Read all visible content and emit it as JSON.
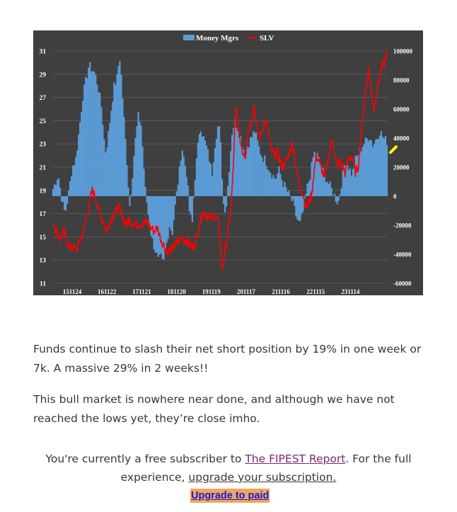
{
  "chart_data": {
    "type": "line+bar",
    "title": "",
    "legend": {
      "placement": "top-center",
      "entries": [
        {
          "name": "Money Mgrs",
          "kind": "bar",
          "color": "#5b9bd5"
        },
        {
          "name": "SLV",
          "kind": "line",
          "color": "#ff0000"
        }
      ]
    },
    "x_tick_labels": [
      "151124",
      "161122",
      "171121",
      "181120",
      "191119",
      "201117",
      "211116",
      "221115",
      "231114"
    ],
    "x_range": [
      2015.35,
      2024.95
    ],
    "left_axis": {
      "label": "",
      "range": [
        11,
        31
      ],
      "ticks": [
        31,
        29,
        27,
        25,
        23,
        21,
        19,
        17,
        15,
        13,
        11
      ],
      "series": "SLV"
    },
    "right_axis": {
      "label": "",
      "range": [
        -60000,
        100000
      ],
      "ticks": [
        100000,
        80000,
        60000,
        40000,
        20000,
        0,
        -20000,
        -40000,
        -60000
      ],
      "series": "Money Mgrs"
    },
    "series": [
      {
        "name": "Money Mgrs",
        "type": "bar",
        "axis": "right",
        "points": [
          [
            2015.35,
            5000
          ],
          [
            2015.5,
            15000
          ],
          [
            2015.62,
            -5000
          ],
          [
            2015.7,
            -12000
          ],
          [
            2015.8,
            2000
          ],
          [
            2015.9,
            20000
          ],
          [
            2016.0,
            25000
          ],
          [
            2016.1,
            45000
          ],
          [
            2016.2,
            68000
          ],
          [
            2016.3,
            80000
          ],
          [
            2016.38,
            90000
          ],
          [
            2016.45,
            88000
          ],
          [
            2016.55,
            85000
          ],
          [
            2016.65,
            75000
          ],
          [
            2016.75,
            60000
          ],
          [
            2016.85,
            30000
          ],
          [
            2016.92,
            38000
          ],
          [
            2017.0,
            55000
          ],
          [
            2017.1,
            75000
          ],
          [
            2017.2,
            82000
          ],
          [
            2017.26,
            98000
          ],
          [
            2017.32,
            80000
          ],
          [
            2017.4,
            50000
          ],
          [
            2017.5,
            15000
          ],
          [
            2017.55,
            -8000
          ],
          [
            2017.62,
            10000
          ],
          [
            2017.7,
            35000
          ],
          [
            2017.8,
            55000
          ],
          [
            2017.88,
            50000
          ],
          [
            2017.95,
            25000
          ],
          [
            2018.0,
            5000
          ],
          [
            2018.1,
            -15000
          ],
          [
            2018.2,
            -30000
          ],
          [
            2018.3,
            -38000
          ],
          [
            2018.38,
            -45000
          ],
          [
            2018.45,
            -42000
          ],
          [
            2018.52,
            -48000
          ],
          [
            2018.6,
            -35000
          ],
          [
            2018.7,
            -20000
          ],
          [
            2018.78,
            -25000
          ],
          [
            2018.85,
            -10000
          ],
          [
            2018.92,
            5000
          ],
          [
            2019.0,
            20000
          ],
          [
            2019.05,
            35000
          ],
          [
            2019.12,
            25000
          ],
          [
            2019.2,
            15000
          ],
          [
            2019.27,
            -10000
          ],
          [
            2019.35,
            -20000
          ],
          [
            2019.42,
            10000
          ],
          [
            2019.5,
            30000
          ],
          [
            2019.58,
            50000
          ],
          [
            2019.65,
            42000
          ],
          [
            2019.75,
            35000
          ],
          [
            2019.85,
            25000
          ],
          [
            2019.92,
            15000
          ],
          [
            2020.0,
            35000
          ],
          [
            2020.08,
            48000
          ],
          [
            2020.15,
            45000
          ],
          [
            2020.2,
            20000
          ],
          [
            2020.25,
            -5000
          ],
          [
            2020.32,
            -10000
          ],
          [
            2020.4,
            15000
          ],
          [
            2020.5,
            45000
          ],
          [
            2020.58,
            52000
          ],
          [
            2020.65,
            48000
          ],
          [
            2020.75,
            40000
          ],
          [
            2020.85,
            30000
          ],
          [
            2020.95,
            35000
          ],
          [
            2021.05,
            40000
          ],
          [
            2021.15,
            45000
          ],
          [
            2021.25,
            35000
          ],
          [
            2021.35,
            28000
          ],
          [
            2021.45,
            25000
          ],
          [
            2021.55,
            20000
          ],
          [
            2021.65,
            15000
          ],
          [
            2021.75,
            12000
          ],
          [
            2021.85,
            18000
          ],
          [
            2021.95,
            10000
          ],
          [
            2022.05,
            5000
          ],
          [
            2022.15,
            0
          ],
          [
            2022.25,
            -5000
          ],
          [
            2022.35,
            -15000
          ],
          [
            2022.45,
            -20000
          ],
          [
            2022.55,
            -10000
          ],
          [
            2022.65,
            5000
          ],
          [
            2022.75,
            15000
          ],
          [
            2022.85,
            30000
          ],
          [
            2022.95,
            28000
          ],
          [
            2023.05,
            20000
          ],
          [
            2023.15,
            15000
          ],
          [
            2023.25,
            10000
          ],
          [
            2023.35,
            5000
          ],
          [
            2023.45,
            0
          ],
          [
            2023.55,
            -5000
          ],
          [
            2023.65,
            10000
          ],
          [
            2023.75,
            25000
          ],
          [
            2023.85,
            20000
          ],
          [
            2023.95,
            15000
          ],
          [
            2024.05,
            25000
          ],
          [
            2024.15,
            30000
          ],
          [
            2024.25,
            35000
          ],
          [
            2024.35,
            38000
          ],
          [
            2024.45,
            42000
          ],
          [
            2024.55,
            35000
          ],
          [
            2024.65,
            40000
          ],
          [
            2024.75,
            45000
          ],
          [
            2024.85,
            40000
          ],
          [
            2024.95,
            38000
          ]
        ]
      },
      {
        "name": "SLV",
        "type": "line",
        "axis": "left",
        "points": [
          [
            2015.35,
            16.2
          ],
          [
            2015.45,
            15.5
          ],
          [
            2015.55,
            14.8
          ],
          [
            2015.65,
            15.5
          ],
          [
            2015.75,
            14.6
          ],
          [
            2015.85,
            14.0
          ],
          [
            2015.92,
            14.2
          ],
          [
            2016.0,
            13.8
          ],
          [
            2016.1,
            14.5
          ],
          [
            2016.2,
            15.2
          ],
          [
            2016.3,
            16.5
          ],
          [
            2016.4,
            18.0
          ],
          [
            2016.48,
            19.0
          ],
          [
            2016.55,
            18.5
          ],
          [
            2016.62,
            17.8
          ],
          [
            2016.7,
            16.8
          ],
          [
            2016.78,
            16.5
          ],
          [
            2016.88,
            15.5
          ],
          [
            2016.95,
            16.0
          ],
          [
            2017.05,
            16.8
          ],
          [
            2017.15,
            17.2
          ],
          [
            2017.25,
            17.5
          ],
          [
            2017.35,
            16.8
          ],
          [
            2017.45,
            16.0
          ],
          [
            2017.55,
            16.5
          ],
          [
            2017.65,
            16.2
          ],
          [
            2017.75,
            16.0
          ],
          [
            2017.85,
            16.2
          ],
          [
            2017.95,
            16.1
          ],
          [
            2018.05,
            16.3
          ],
          [
            2018.15,
            15.8
          ],
          [
            2018.25,
            15.5
          ],
          [
            2018.35,
            15.8
          ],
          [
            2018.45,
            14.8
          ],
          [
            2018.55,
            14.2
          ],
          [
            2018.62,
            13.7
          ],
          [
            2018.7,
            13.8
          ],
          [
            2018.8,
            14.0
          ],
          [
            2018.88,
            14.3
          ],
          [
            2018.95,
            14.6
          ],
          [
            2019.05,
            15.0
          ],
          [
            2019.15,
            14.7
          ],
          [
            2019.25,
            14.5
          ],
          [
            2019.35,
            14.0
          ],
          [
            2019.45,
            14.5
          ],
          [
            2019.55,
            16.0
          ],
          [
            2019.65,
            17.2
          ],
          [
            2019.75,
            17.0
          ],
          [
            2019.85,
            16.5
          ],
          [
            2019.92,
            16.8
          ],
          [
            2020.0,
            16.7
          ],
          [
            2020.08,
            16.5
          ],
          [
            2020.15,
            15.0
          ],
          [
            2020.2,
            12.0
          ],
          [
            2020.28,
            13.5
          ],
          [
            2020.35,
            15.0
          ],
          [
            2020.45,
            17.0
          ],
          [
            2020.52,
            20.0
          ],
          [
            2020.58,
            25.0
          ],
          [
            2020.62,
            26.0
          ],
          [
            2020.7,
            24.0
          ],
          [
            2020.78,
            22.5
          ],
          [
            2020.88,
            22.0
          ],
          [
            2020.95,
            24.0
          ],
          [
            2021.05,
            25.0
          ],
          [
            2021.12,
            26.5
          ],
          [
            2021.2,
            24.5
          ],
          [
            2021.3,
            23.5
          ],
          [
            2021.38,
            24.5
          ],
          [
            2021.45,
            25.0
          ],
          [
            2021.55,
            24.0
          ],
          [
            2021.62,
            22.5
          ],
          [
            2021.7,
            22.0
          ],
          [
            2021.8,
            22.3
          ],
          [
            2021.88,
            21.5
          ],
          [
            2021.95,
            21.0
          ],
          [
            2022.05,
            21.5
          ],
          [
            2022.12,
            22.0
          ],
          [
            2022.2,
            23.0
          ],
          [
            2022.28,
            22.5
          ],
          [
            2022.35,
            20.5
          ],
          [
            2022.45,
            19.5
          ],
          [
            2022.55,
            18.5
          ],
          [
            2022.62,
            17.5
          ],
          [
            2022.7,
            18.0
          ],
          [
            2022.78,
            18.5
          ],
          [
            2022.85,
            20.5
          ],
          [
            2022.92,
            22.0
          ],
          [
            2023.0,
            21.5
          ],
          [
            2023.08,
            20.8
          ],
          [
            2023.15,
            20.0
          ],
          [
            2023.22,
            21.0
          ],
          [
            2023.3,
            22.5
          ],
          [
            2023.38,
            23.5
          ],
          [
            2023.45,
            22.0
          ],
          [
            2023.52,
            21.0
          ],
          [
            2023.6,
            21.5
          ],
          [
            2023.68,
            21.0
          ],
          [
            2023.75,
            20.5
          ],
          [
            2023.82,
            21.5
          ],
          [
            2023.9,
            22.0
          ],
          [
            2023.98,
            21.5
          ],
          [
            2024.05,
            20.5
          ],
          [
            2024.12,
            21.0
          ],
          [
            2024.2,
            23.5
          ],
          [
            2024.28,
            26.0
          ],
          [
            2024.35,
            28.0
          ],
          [
            2024.42,
            29.5
          ],
          [
            2024.5,
            27.5
          ],
          [
            2024.58,
            26.0
          ],
          [
            2024.65,
            27.5
          ],
          [
            2024.72,
            28.5
          ],
          [
            2024.8,
            29.5
          ],
          [
            2024.88,
            30.0
          ],
          [
            2024.95,
            31.0
          ]
        ]
      }
    ],
    "annotations": [
      {
        "type": "marker",
        "description": "yellow highlight mark",
        "x": 2024.97,
        "y_right": 35000,
        "color": "#ffff00"
      }
    ]
  },
  "post": {
    "paragraphs": [
      "Funds continue to slash their net short position by 19% in one week or 7k. A massive 29% in 2 weeks!!",
      "This bull market is nowhere near done, and although we have not reached the lows yet, they’re close imho."
    ]
  },
  "footer": {
    "prefix": "You're currently a free subscriber to ",
    "report_link": "The FIPEST Report",
    "middle": ". For the full experience, ",
    "upgrade_link": "upgrade your subscription.",
    "button": "Upgrade to paid"
  }
}
